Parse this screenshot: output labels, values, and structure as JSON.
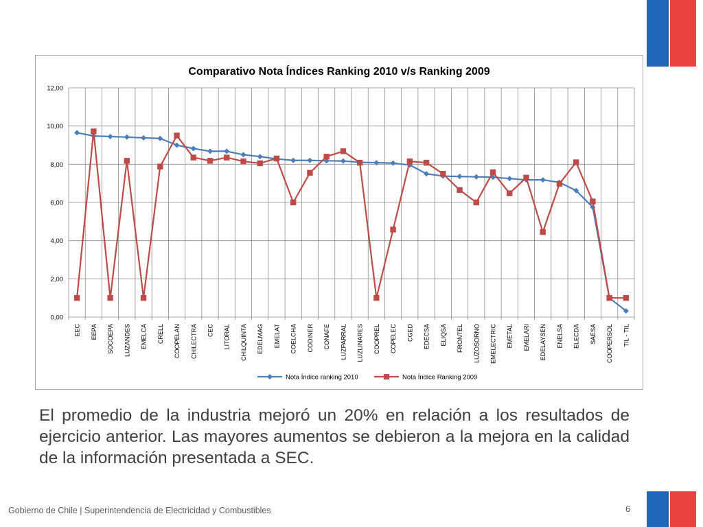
{
  "slide": {
    "body_text": "El promedio de la industria mejoró un 20% en relación a los resultados de ejercicio anterior. Las mayores aumentos se debieron a la mejora en la calidad de la información presentada a SEC.",
    "footer": "Gobierno de Chile | Superintendencia de Electricidad y Combustibles",
    "page_number": "6"
  },
  "colors": {
    "flag_blue": "#1f66b7",
    "flag_red": "#e8413e",
    "series_2010": "#4a7ebb",
    "series_2009": "#be4b48"
  },
  "chart_data": {
    "type": "line",
    "title": "Comparativo Nota Índices Ranking 2010 v/s Ranking 2009",
    "xlabel": "",
    "ylabel": "",
    "ylim": [
      0,
      12
    ],
    "yticks": [
      "0,00",
      "2,00",
      "4,00",
      "6,00",
      "8,00",
      "10,00",
      "12,00"
    ],
    "grid": true,
    "legend": "bottom",
    "categories": [
      "EEC",
      "EEPA",
      "SOCOEPA",
      "LUZANDES",
      "EMELCA",
      "CRELL",
      "COOPELAN",
      "CHILECTRA",
      "CEC",
      "LITORAL",
      "CHILQUINTA",
      "EDELMAG",
      "EMELAT",
      "COELCHA",
      "CODINER",
      "CONAFE",
      "LUZPARRAL",
      "LUZLINARES",
      "COOPREL",
      "COPELEC",
      "CGED",
      "EDECSA",
      "ELIQSA",
      "FRONTEL",
      "LUZOSORNO",
      "EMELECTRIC",
      "EMETAL",
      "EMELARI",
      "EDELAYSEN",
      "ENELSA",
      "ELECDA",
      "SAESA",
      "COOPERSOL",
      "TIL - TIL"
    ],
    "series": [
      {
        "name": "Nota Índice ranking 2010",
        "marker": "diamond",
        "values": [
          9.65,
          9.48,
          9.45,
          9.42,
          9.38,
          9.35,
          9.0,
          8.82,
          8.68,
          8.68,
          8.5,
          8.4,
          8.28,
          8.2,
          8.2,
          8.18,
          8.17,
          8.1,
          8.08,
          8.06,
          7.96,
          7.5,
          7.38,
          7.36,
          7.34,
          7.32,
          7.25,
          7.18,
          7.18,
          7.05,
          6.62,
          5.75,
          1.0,
          0.32
        ]
      },
      {
        "name": "Nota Índice Ranking 2009",
        "marker": "square",
        "values": [
          1.0,
          9.72,
          1.0,
          8.18,
          1.0,
          7.88,
          9.5,
          8.35,
          8.18,
          8.35,
          8.15,
          8.05,
          8.3,
          6.0,
          7.55,
          8.4,
          8.68,
          8.08,
          1.0,
          4.58,
          8.15,
          8.08,
          7.5,
          6.65,
          6.0,
          7.58,
          6.48,
          7.3,
          4.45,
          6.98,
          8.1,
          6.05,
          1.0,
          1.0
        ]
      }
    ]
  }
}
